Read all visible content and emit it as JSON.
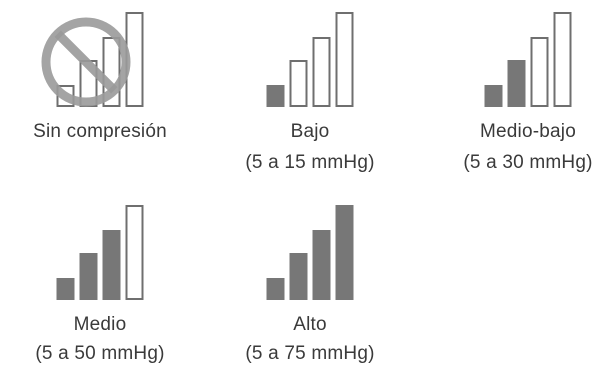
{
  "colors": {
    "filled": "#777777",
    "outline": "#6f6f6f",
    "prohibit": "#9a9a9a"
  },
  "icon_names": {
    "no_compression": "prohibited-icon"
  },
  "levels": [
    {
      "name": "Sin compresión",
      "range": "",
      "filled_bars": 0,
      "total_bars": 4,
      "crossed_out": true
    },
    {
      "name": "Bajo",
      "range": "(5 a 15 mmHg)",
      "filled_bars": 1,
      "total_bars": 4,
      "crossed_out": false
    },
    {
      "name": "Medio-bajo",
      "range": "(5 a 30 mmHg)",
      "filled_bars": 2,
      "total_bars": 4,
      "crossed_out": false
    },
    {
      "name": "Medio",
      "range": "(5 a 50 mmHg)",
      "filled_bars": 3,
      "total_bars": 4,
      "crossed_out": false
    },
    {
      "name": "Alto",
      "range": "(5 a 75 mmHg)",
      "filled_bars": 4,
      "total_bars": 4,
      "crossed_out": false
    }
  ]
}
